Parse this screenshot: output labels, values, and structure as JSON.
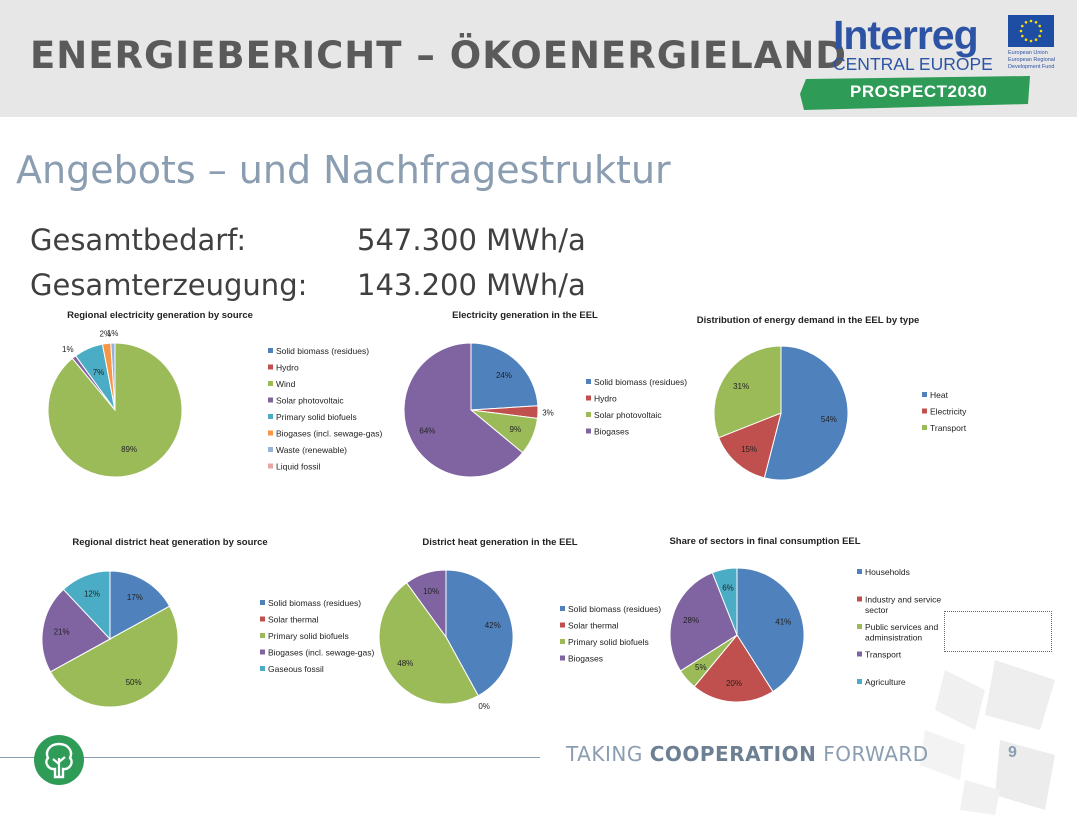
{
  "header": {
    "title": "ENERGIEBERICHT – ÖKOENERGIELAND",
    "logo_word": "Interreg",
    "logo_region": "CENTRAL EUROPE",
    "logo_eu_lines": [
      "European Union",
      "European Regional",
      "Development Fund"
    ],
    "logo_project": "PROSPECT2030"
  },
  "subtitle": "Angebots – und Nachfragestruktur",
  "kpis": {
    "demand_label": "Gesamtbedarf:",
    "demand_value": "547.300 MWh/a",
    "generation_label": "Gesamterzeugung:",
    "generation_value": "143.200 MWh/a"
  },
  "chart_data": [
    {
      "type": "pie",
      "title": "Regional electricity generation by source",
      "labels": [
        "Solid biomass (residues)",
        "Hydro",
        "Wind",
        "Solar photovoltaic",
        "Primary solid biofuels",
        "Biogases (incl. sewage-gas)",
        "Waste (renewable)",
        "Liquid fossil"
      ],
      "values": [
        0,
        0,
        89,
        1,
        7,
        2,
        1,
        0
      ],
      "value_labels": [
        "",
        "",
        "89%",
        "1%",
        "7%",
        "2%",
        "1%",
        ""
      ],
      "colors": [
        "#4f81bd",
        "#c0504d",
        "#9bbb59",
        "#8064a2",
        "#4bacc6",
        "#f79646",
        "#95b3d7",
        "#e6a6a5"
      ],
      "start_angle": 0,
      "legend": "right"
    },
    {
      "type": "pie",
      "title": "Electricity generation in the EEL",
      "labels": [
        "Solid biomass (residues)",
        "Hydro",
        "Solar photovoltaic",
        "Biogases"
      ],
      "values": [
        24,
        3,
        9,
        64
      ],
      "value_labels": [
        "24%",
        "3%",
        "9%",
        "64%"
      ],
      "colors": [
        "#4f81bd",
        "#c0504d",
        "#9bbb59",
        "#8064a2"
      ],
      "start_angle": 0,
      "legend": "right"
    },
    {
      "type": "pie",
      "title": "Distribution of energy demand in the EEL by type",
      "labels": [
        "Heat",
        "Electricity",
        "Transport"
      ],
      "values": [
        54,
        15,
        31
      ],
      "value_labels": [
        "54%",
        "15%",
        "31%"
      ],
      "colors": [
        "#4f81bd",
        "#c0504d",
        "#9bbb59"
      ],
      "start_angle": 0,
      "legend": "right"
    },
    {
      "type": "pie",
      "title": "Regional district heat generation by source",
      "labels": [
        "Solid biomass (residues)",
        "Solar thermal",
        "Primary solid biofuels",
        "Biogases (incl. sewage-gas)",
        "Gaseous fossil"
      ],
      "values": [
        17,
        0,
        50,
        21,
        12
      ],
      "value_labels": [
        "17%",
        "",
        "50%",
        "21%",
        "12%"
      ],
      "colors": [
        "#4f81bd",
        "#c0504d",
        "#9bbb59",
        "#8064a2",
        "#4bacc6"
      ],
      "start_angle": 0,
      "legend": "right"
    },
    {
      "type": "pie",
      "title": "District heat generation in the EEL",
      "labels": [
        "Solid biomass (residues)",
        "Solar thermal",
        "Primary solid biofuels",
        "Biogases"
      ],
      "values": [
        42,
        0,
        48,
        10
      ],
      "value_labels": [
        "42%",
        "0%",
        "48%",
        "10%"
      ],
      "colors": [
        "#4f81bd",
        "#c0504d",
        "#9bbb59",
        "#8064a2"
      ],
      "start_angle": 0,
      "legend": "right"
    },
    {
      "type": "pie",
      "title": "Share of sectors in final consumption  EEL",
      "labels": [
        "Households",
        "Industry and service sector",
        "Public services and adminsistration",
        "Transport",
        "Agriculture"
      ],
      "values": [
        41,
        20,
        5,
        28,
        6
      ],
      "value_labels": [
        "41%",
        "20%",
        "5%",
        "28%",
        "6%"
      ],
      "colors": [
        "#4f81bd",
        "#c0504d",
        "#9bbb59",
        "#8064a2",
        "#4bacc6"
      ],
      "start_angle": 0,
      "legend": "right"
    }
  ],
  "footer": {
    "tag_pre": "TAKING ",
    "tag_bold": "COOPERATION",
    "tag_post": " FORWARD",
    "page": "9"
  }
}
